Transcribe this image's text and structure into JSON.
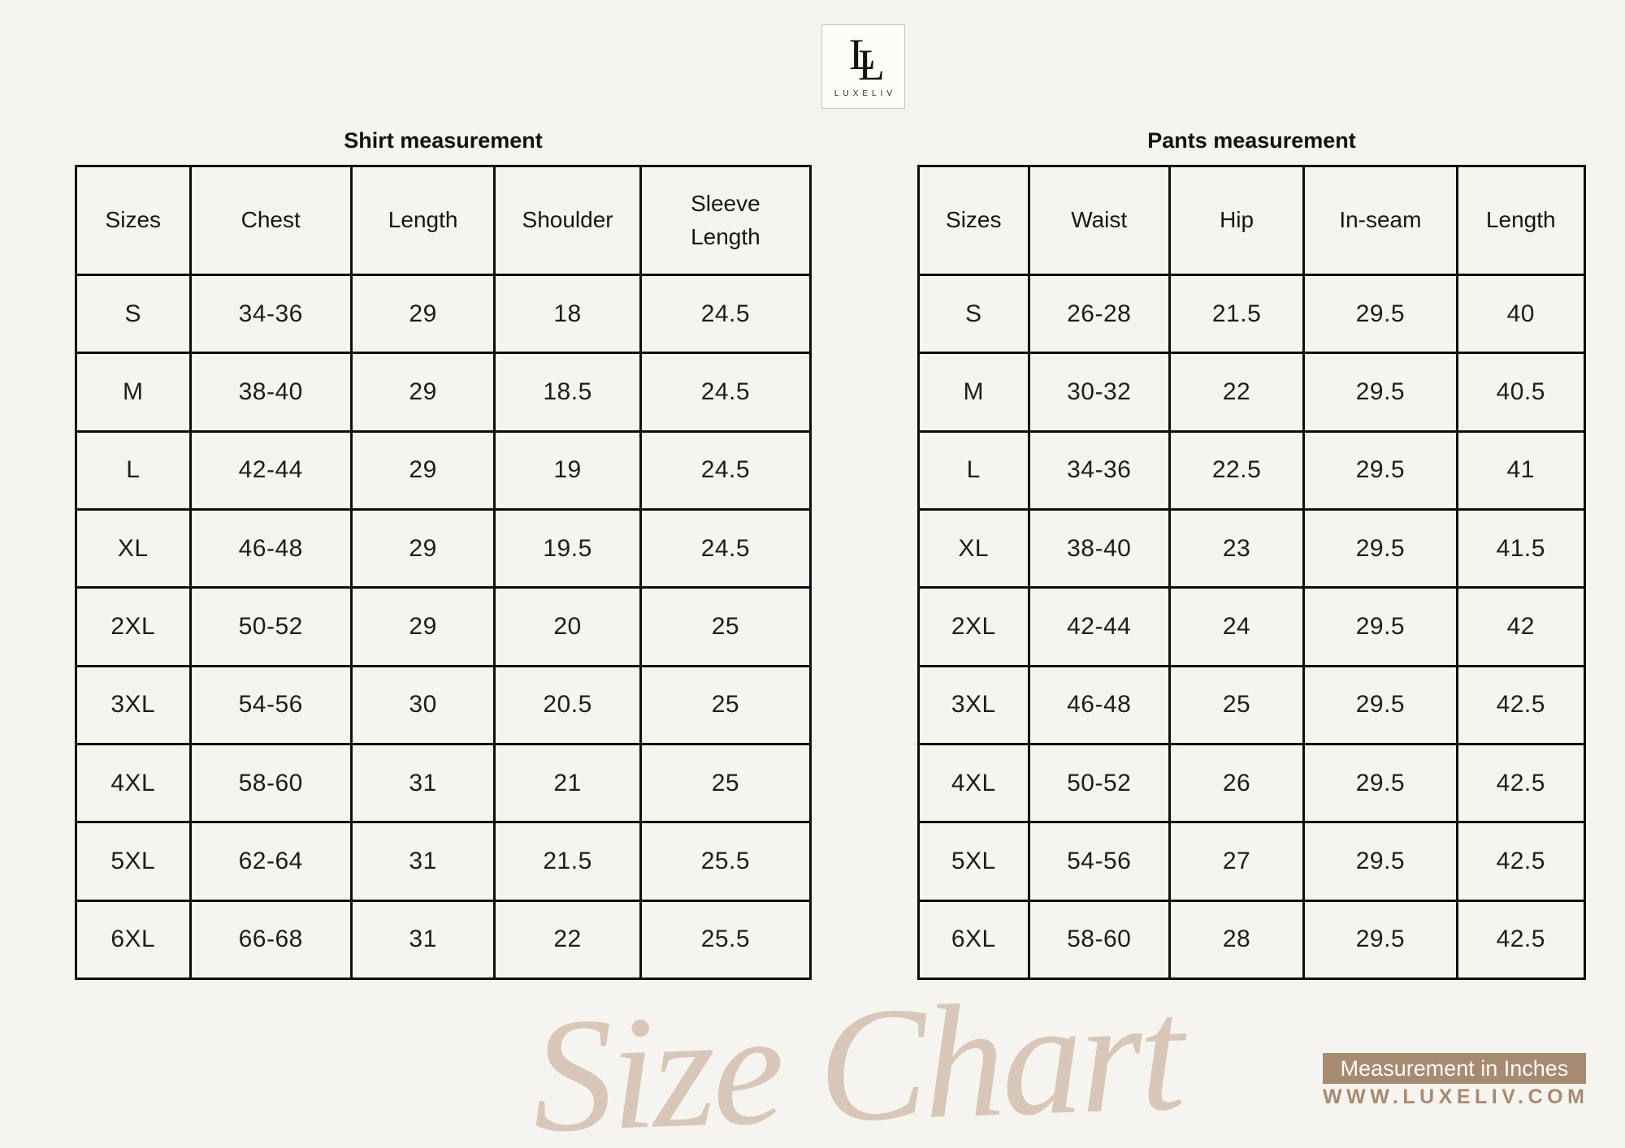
{
  "logo": {
    "monogram_letters": [
      "L",
      "L"
    ],
    "brand": "LUXELIV"
  },
  "shirt_table": {
    "title": "Shirt measurement",
    "headers": [
      "Sizes",
      "Chest",
      "Length",
      "Shoulder",
      "Sleeve\nLength"
    ],
    "rows": [
      [
        "S",
        "34-36",
        "29",
        "18",
        "24.5"
      ],
      [
        "M",
        "38-40",
        "29",
        "18.5",
        "24.5"
      ],
      [
        "L",
        "42-44",
        "29",
        "19",
        "24.5"
      ],
      [
        "XL",
        "46-48",
        "29",
        "19.5",
        "24.5"
      ],
      [
        "2XL",
        "50-52",
        "29",
        "20",
        "25"
      ],
      [
        "3XL",
        "54-56",
        "30",
        "20.5",
        "25"
      ],
      [
        "4XL",
        "58-60",
        "31",
        "21",
        "25"
      ],
      [
        "5XL",
        "62-64",
        "31",
        "21.5",
        "25.5"
      ],
      [
        "6XL",
        "66-68",
        "31",
        "22",
        "25.5"
      ]
    ]
  },
  "pants_table": {
    "title": "Pants measurement",
    "headers": [
      "Sizes",
      "Waist",
      "Hip",
      "In-seam",
      "Length"
    ],
    "rows": [
      [
        "S",
        "26-28",
        "21.5",
        "29.5",
        "40"
      ],
      [
        "M",
        "30-32",
        "22",
        "29.5",
        "40.5"
      ],
      [
        "L",
        "34-36",
        "22.5",
        "29.5",
        "41"
      ],
      [
        "XL",
        "38-40",
        "23",
        "29.5",
        "41.5"
      ],
      [
        "2XL",
        "42-44",
        "24",
        "29.5",
        "42"
      ],
      [
        "3XL",
        "46-48",
        "25",
        "29.5",
        "42.5"
      ],
      [
        "4XL",
        "50-52",
        "26",
        "29.5",
        "42.5"
      ],
      [
        "5XL",
        "54-56",
        "27",
        "29.5",
        "42.5"
      ],
      [
        "6XL",
        "58-60",
        "28",
        "29.5",
        "42.5"
      ]
    ]
  },
  "watermark": {
    "text": "Size Chart",
    "color": "#d8c7b9"
  },
  "footer": {
    "badge_text": "Measurement in Inches",
    "badge_bg": "#a78a72",
    "website": "WWW.LUXELIV.COM",
    "website_color": "#a78a72"
  },
  "colors": {
    "background": "#f6f4ef",
    "table_border": "#0e0e0e",
    "text": "#1b1b1b"
  }
}
